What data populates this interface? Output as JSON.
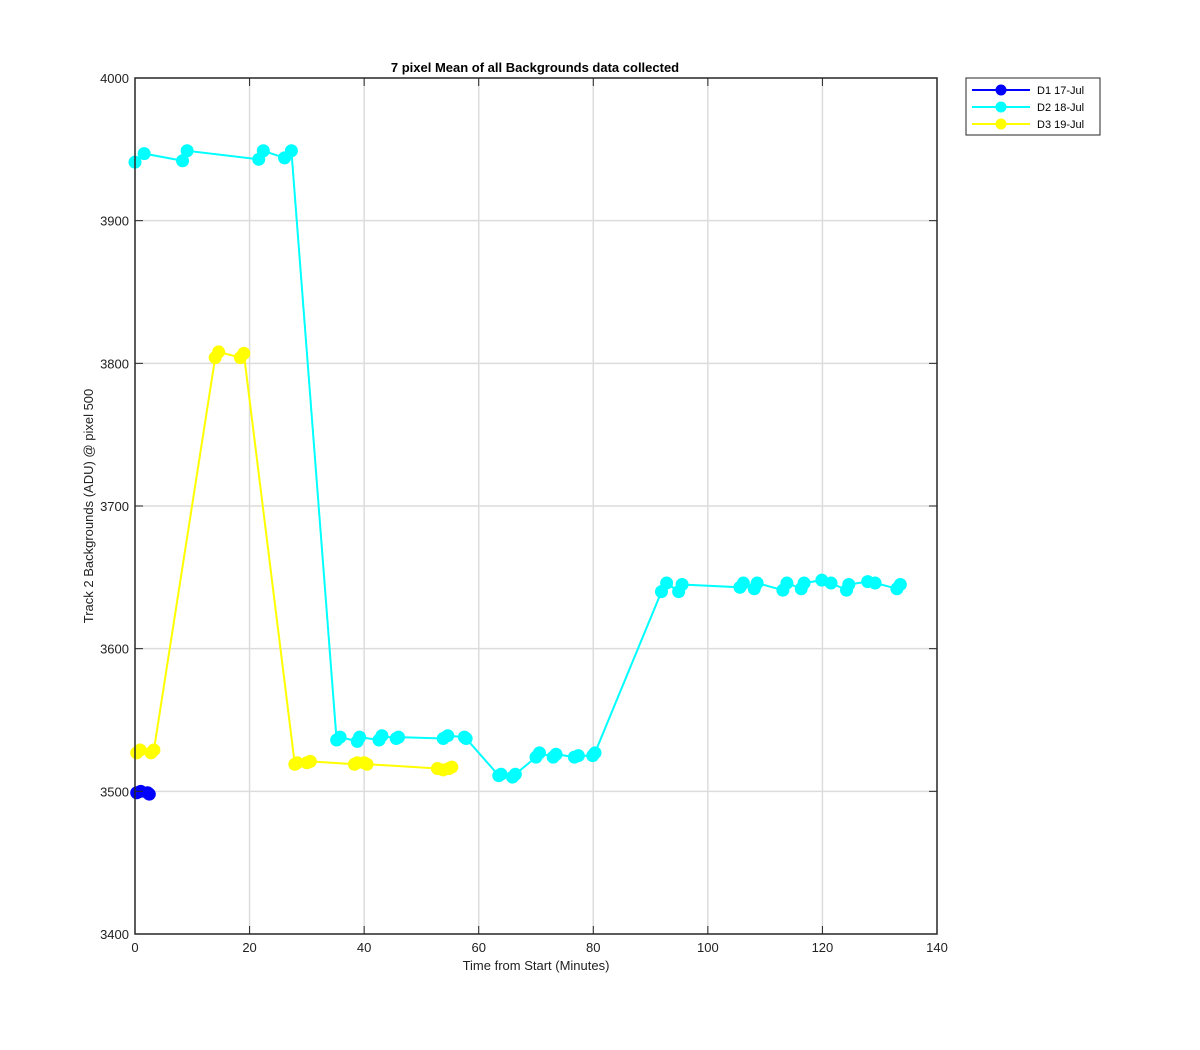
{
  "chart_data": {
    "type": "line",
    "title": "7 pixel Mean of all Backgrounds data collected",
    "xlabel": "Time from Start (Minutes)",
    "ylabel": "Track 2 Backgrounds (ADU) @ pixel 500",
    "xlim": [
      0,
      140
    ],
    "ylim": [
      3400,
      4000
    ],
    "xticks": [
      "0",
      "20",
      "40",
      "60",
      "80",
      "100",
      "120",
      "140"
    ],
    "yticks": [
      "3400",
      "3500",
      "3600",
      "3700",
      "3800",
      "3900",
      "4000"
    ],
    "grid": true,
    "legend_position": "outside-top-right",
    "series": [
      {
        "name": "D1 17-Jul",
        "color": "#0000ff",
        "marker": "circle",
        "points": [
          [
            0.3,
            3499
          ],
          [
            1.0,
            3500
          ],
          [
            2.2,
            3499
          ],
          [
            2.5,
            3498
          ]
        ]
      },
      {
        "name": "D2 18-Jul",
        "color": "#00ffff",
        "marker": "circle",
        "points": [
          [
            0,
            3941
          ],
          [
            1.6,
            3947
          ],
          [
            8.3,
            3942
          ],
          [
            9.1,
            3949
          ],
          [
            21.6,
            3943
          ],
          [
            22.4,
            3949
          ],
          [
            26.1,
            3944
          ],
          [
            27.3,
            3949
          ],
          [
            35.2,
            3536
          ],
          [
            35.8,
            3538
          ],
          [
            38.8,
            3535
          ],
          [
            39.2,
            3538
          ],
          [
            42.6,
            3536
          ],
          [
            43.1,
            3539
          ],
          [
            45.6,
            3537
          ],
          [
            46.0,
            3538
          ],
          [
            53.8,
            3537
          ],
          [
            54.6,
            3539
          ],
          [
            57.5,
            3538
          ],
          [
            57.8,
            3537
          ],
          [
            63.5,
            3511
          ],
          [
            63.9,
            3512
          ],
          [
            65.9,
            3510
          ],
          [
            66.4,
            3512
          ],
          [
            70.0,
            3524
          ],
          [
            70.6,
            3527
          ],
          [
            73.0,
            3524
          ],
          [
            73.5,
            3526
          ],
          [
            76.7,
            3524
          ],
          [
            77.4,
            3525
          ],
          [
            79.9,
            3525
          ],
          [
            80.3,
            3527
          ],
          [
            91.9,
            3640
          ],
          [
            92.8,
            3646
          ],
          [
            94.9,
            3640
          ],
          [
            95.5,
            3645
          ],
          [
            105.6,
            3643
          ],
          [
            106.2,
            3646
          ],
          [
            108.1,
            3642
          ],
          [
            108.6,
            3646
          ],
          [
            113.1,
            3641
          ],
          [
            113.8,
            3646
          ],
          [
            116.3,
            3642
          ],
          [
            116.8,
            3646
          ],
          [
            119.9,
            3648
          ],
          [
            121.5,
            3646
          ],
          [
            124.2,
            3641
          ],
          [
            124.6,
            3645
          ],
          [
            127.9,
            3647
          ],
          [
            129.2,
            3646
          ],
          [
            133.0,
            3642
          ],
          [
            133.6,
            3645
          ]
        ]
      },
      {
        "name": "D3 19-Jul",
        "color": "#ffff00",
        "marker": "circle",
        "points": [
          [
            0.3,
            3527
          ],
          [
            0.9,
            3529
          ],
          [
            2.8,
            3527
          ],
          [
            3.3,
            3529
          ],
          [
            14.0,
            3804
          ],
          [
            14.6,
            3808
          ],
          [
            18.4,
            3804
          ],
          [
            19.0,
            3807
          ],
          [
            27.9,
            3519
          ],
          [
            28.3,
            3520
          ],
          [
            30.0,
            3520
          ],
          [
            30.6,
            3521
          ],
          [
            38.3,
            3519
          ],
          [
            38.8,
            3520
          ],
          [
            40.0,
            3520
          ],
          [
            40.5,
            3519
          ],
          [
            52.8,
            3516
          ],
          [
            53.8,
            3515
          ],
          [
            54.8,
            3516
          ],
          [
            55.3,
            3517
          ]
        ]
      }
    ]
  }
}
